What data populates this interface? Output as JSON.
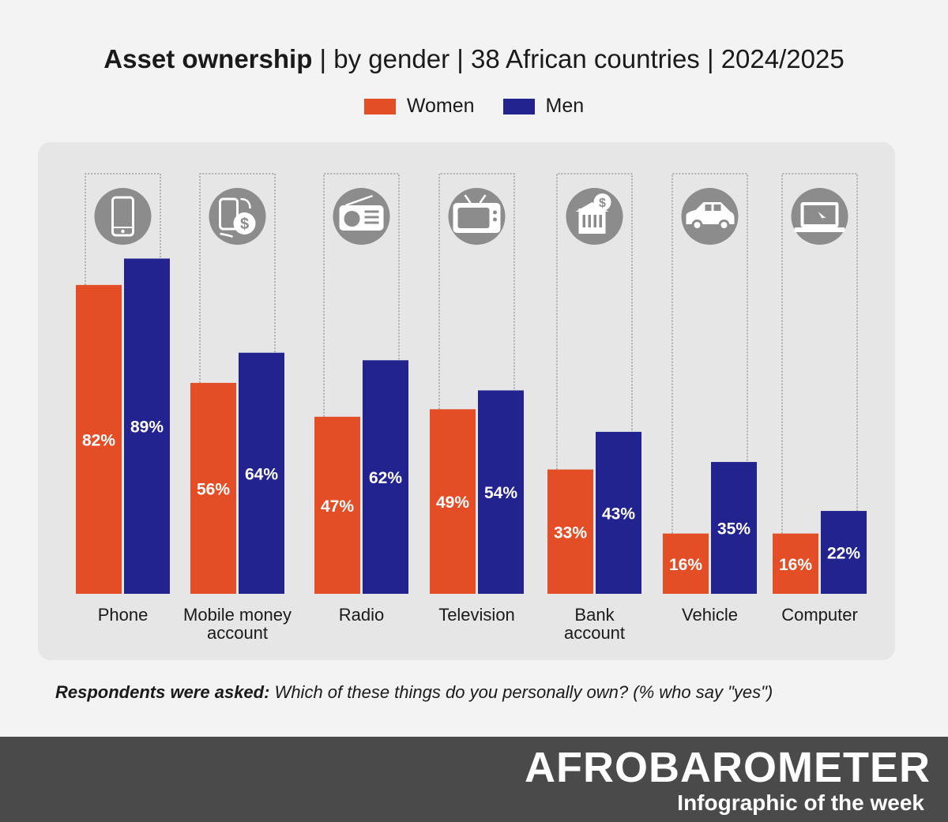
{
  "header": {
    "title_bold": "Asset ownership",
    "title_rest": " | by gender | 38 African countries | 2024/2025"
  },
  "legend": {
    "women": "Women",
    "men": "Men"
  },
  "colors": {
    "women": "#e44e26",
    "men": "#232390",
    "icon_bg": "#8c8c8c"
  },
  "chart_data": {
    "type": "bar",
    "title": "Asset ownership | by gender | 38 African countries | 2024/2025",
    "categories": [
      "Phone",
      "Mobile money account",
      "Radio",
      "Television",
      "Bank account",
      "Vehicle",
      "Computer"
    ],
    "category_lines": [
      [
        "Phone"
      ],
      [
        "Mobile money",
        "account"
      ],
      [
        "Radio"
      ],
      [
        "Television"
      ],
      [
        "Bank",
        "account"
      ],
      [
        "Vehicle"
      ],
      [
        "Computer"
      ]
    ],
    "icons": [
      "phone-icon",
      "mobile-money-icon",
      "radio-icon",
      "television-icon",
      "bank-icon",
      "vehicle-icon",
      "computer-icon"
    ],
    "series": [
      {
        "name": "Women",
        "values": [
          82,
          56,
          47,
          49,
          33,
          16,
          16
        ],
        "labels": [
          "82%",
          "56%",
          "47%",
          "49%",
          "33%",
          "16%",
          "16%"
        ]
      },
      {
        "name": "Men",
        "values": [
          89,
          64,
          62,
          54,
          43,
          35,
          22
        ],
        "labels": [
          "89%",
          "64%",
          "62%",
          "54%",
          "43%",
          "35%",
          "22%"
        ]
      }
    ],
    "ylim": [
      0,
      100
    ],
    "grid": false,
    "legend_position": "top-center"
  },
  "question": {
    "label": "Respondents were asked:",
    "text": " Which of these things do you personally own? (% who say \"yes\")"
  },
  "footer": {
    "brand": "AFROBAROMETER",
    "tagline": "Infographic of the week"
  }
}
